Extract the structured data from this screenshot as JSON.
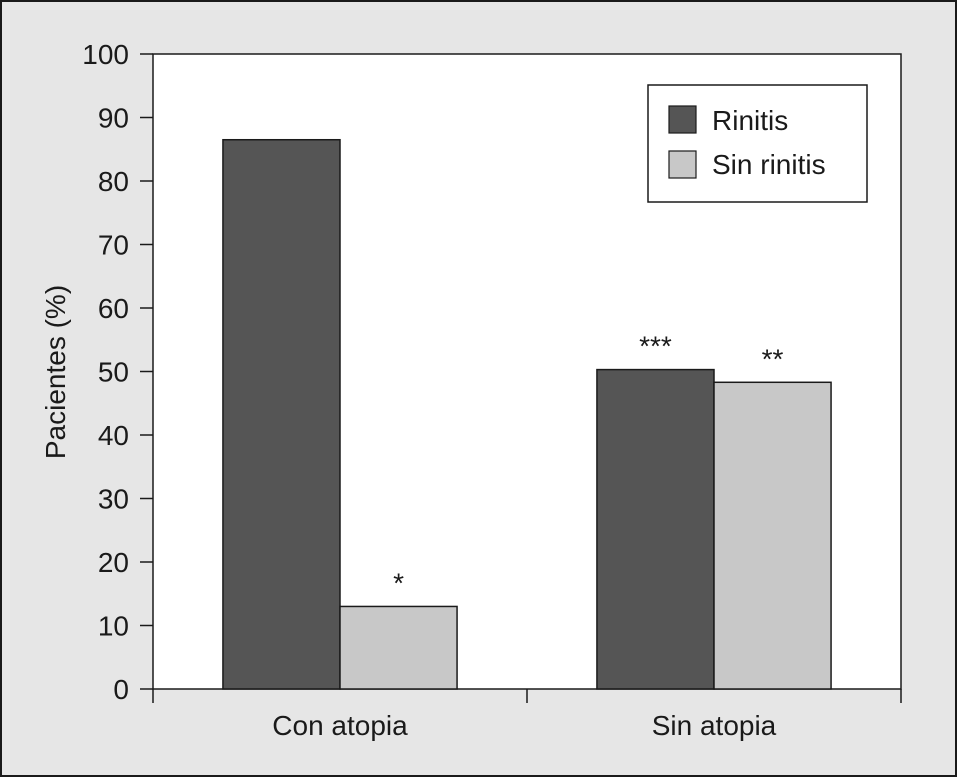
{
  "chart_data": {
    "type": "bar",
    "ylabel": "Pacientes (%)",
    "ylim": [
      0,
      100
    ],
    "yticks": [
      0,
      10,
      20,
      30,
      40,
      50,
      60,
      70,
      80,
      90,
      100
    ],
    "categories": [
      "Con atopia",
      "Sin atopia"
    ],
    "series": [
      {
        "name": "Rinitis",
        "values": [
          86.5,
          50.3
        ],
        "color": "#555555",
        "annotations": [
          "",
          "***"
        ]
      },
      {
        "name": "Sin rinitis",
        "values": [
          13.0,
          48.3
        ],
        "color": "#c8c8c8",
        "annotations": [
          "*",
          "**"
        ]
      }
    ],
    "legend_position": "top-right",
    "grid": false
  }
}
